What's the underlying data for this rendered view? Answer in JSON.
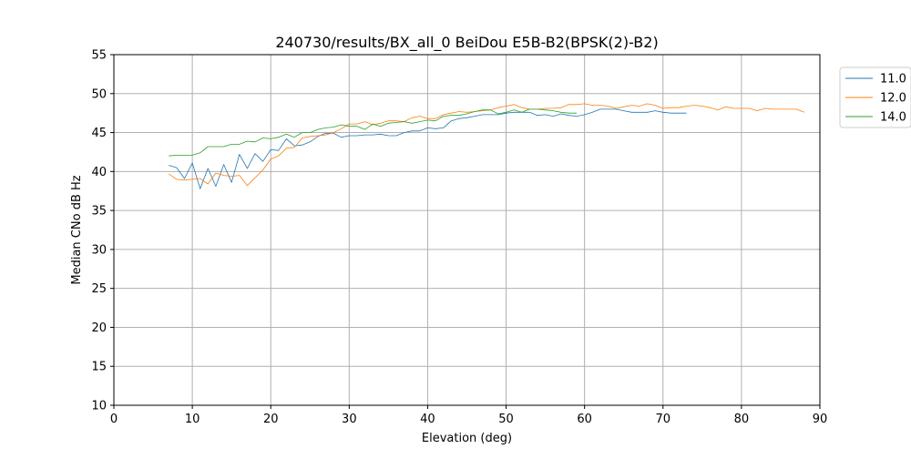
{
  "chart_data": {
    "type": "line",
    "title": "240730/results/BX_all_0 BeiDou E5B-B2(BPSK(2)-B2)",
    "xlabel": "Elevation (deg)",
    "ylabel": "Median CNo dB Hz",
    "xlim": [
      0,
      90
    ],
    "ylim": [
      10,
      55
    ],
    "xticks": [
      "0",
      "10",
      "20",
      "30",
      "40",
      "50",
      "60",
      "70",
      "80",
      "90"
    ],
    "yticks": [
      "10",
      "15",
      "20",
      "25",
      "30",
      "35",
      "40",
      "45",
      "50",
      "55"
    ],
    "grid": true,
    "legend_position": "outside top-right",
    "series": [
      {
        "name": "11.0",
        "color": "#1f77b4",
        "x": [
          7,
          8,
          9,
          10,
          11,
          12,
          13,
          14,
          15,
          16,
          17,
          18,
          19,
          20,
          21,
          22,
          23,
          24,
          25,
          26,
          27,
          28,
          29,
          30,
          31,
          32,
          33,
          34,
          35,
          36,
          37,
          38,
          39,
          40,
          41,
          42,
          43,
          44,
          45,
          46,
          47,
          48,
          49,
          50,
          51,
          52,
          53,
          54,
          55,
          56,
          57,
          58,
          59,
          60,
          61,
          62,
          63,
          64,
          65,
          66,
          67,
          68,
          69,
          70,
          71,
          72,
          73
        ],
        "y": [
          40.8,
          40.5,
          39.1,
          41.1,
          37.8,
          40.4,
          38.1,
          40.9,
          38.6,
          42.2,
          40.4,
          42.3,
          41.3,
          42.8,
          42.7,
          44.2,
          43.3,
          43.4,
          43.8,
          44.5,
          44.9,
          44.9,
          44.4,
          44.6,
          44.6,
          44.7,
          44.7,
          44.8,
          44.6,
          44.6,
          45.0,
          45.2,
          45.2,
          45.6,
          45.5,
          45.6,
          46.5,
          46.8,
          46.9,
          47.1,
          47.3,
          47.3,
          47.3,
          47.5,
          47.6,
          47.6,
          47.6,
          47.2,
          47.3,
          47.1,
          47.4,
          47.2,
          47.1,
          47.3,
          47.6,
          48.0,
          48.0,
          48.0,
          47.8,
          47.6,
          47.6,
          47.6,
          47.8,
          47.6,
          47.5,
          47.5,
          47.5
        ]
      },
      {
        "name": "12.0",
        "color": "#ff7f0e",
        "x": [
          7,
          8,
          9,
          10,
          11,
          12,
          13,
          14,
          15,
          16,
          17,
          18,
          19,
          20,
          21,
          22,
          23,
          24,
          25,
          26,
          27,
          28,
          29,
          30,
          31,
          32,
          33,
          34,
          35,
          36,
          37,
          38,
          39,
          40,
          41,
          42,
          43,
          44,
          45,
          46,
          47,
          48,
          49,
          50,
          51,
          52,
          53,
          54,
          55,
          56,
          57,
          58,
          59,
          60,
          61,
          62,
          63,
          64,
          65,
          66,
          67,
          68,
          69,
          70,
          71,
          72,
          73,
          74,
          75,
          76,
          77,
          78,
          79,
          80,
          81,
          82,
          83,
          84,
          85,
          86,
          87,
          88
        ],
        "y": [
          39.7,
          39.0,
          38.9,
          39.0,
          39.1,
          38.4,
          39.8,
          39.5,
          39.4,
          39.5,
          38.2,
          39.2,
          40.2,
          41.6,
          42.0,
          43.0,
          43.1,
          44.3,
          44.5,
          44.6,
          44.7,
          45.0,
          45.5,
          46.1,
          46.1,
          46.4,
          46.0,
          46.2,
          46.5,
          46.5,
          46.4,
          46.9,
          47.1,
          46.8,
          46.8,
          47.3,
          47.5,
          47.7,
          47.6,
          47.7,
          47.8,
          47.9,
          48.2,
          48.4,
          48.6,
          48.2,
          48.0,
          48.0,
          48.1,
          48.1,
          48.2,
          48.6,
          48.6,
          48.7,
          48.5,
          48.5,
          48.4,
          48.1,
          48.3,
          48.5,
          48.4,
          48.7,
          48.5,
          48.1,
          48.2,
          48.2,
          48.4,
          48.5,
          48.4,
          48.2,
          47.9,
          48.3,
          48.1,
          48.1,
          48.1,
          47.8,
          48.1,
          48.0,
          48.0,
          48.0,
          48.0,
          47.6
        ]
      },
      {
        "name": "14.0",
        "color": "#2ca02c",
        "x": [
          7,
          8,
          9,
          10,
          11,
          12,
          13,
          14,
          15,
          16,
          17,
          18,
          19,
          20,
          21,
          22,
          23,
          24,
          25,
          26,
          27,
          28,
          29,
          30,
          31,
          32,
          33,
          34,
          35,
          36,
          37,
          38,
          39,
          40,
          41,
          42,
          43,
          44,
          45,
          46,
          47,
          48,
          49,
          50,
          51,
          52,
          53,
          54,
          55,
          56,
          57,
          58,
          59
        ],
        "y": [
          42.0,
          42.1,
          42.1,
          42.1,
          42.4,
          43.2,
          43.2,
          43.2,
          43.5,
          43.5,
          43.9,
          43.8,
          44.3,
          44.2,
          44.4,
          44.8,
          44.4,
          45.0,
          45.0,
          45.4,
          45.6,
          45.7,
          46.0,
          45.8,
          45.8,
          45.4,
          46.1,
          45.8,
          46.2,
          46.3,
          46.4,
          46.2,
          46.4,
          46.6,
          46.5,
          47.1,
          47.2,
          47.2,
          47.4,
          47.7,
          47.9,
          47.9,
          47.4,
          47.6,
          47.9,
          47.6,
          48.0,
          48.0,
          47.9,
          47.8,
          47.6,
          47.5,
          47.5
        ]
      }
    ]
  }
}
